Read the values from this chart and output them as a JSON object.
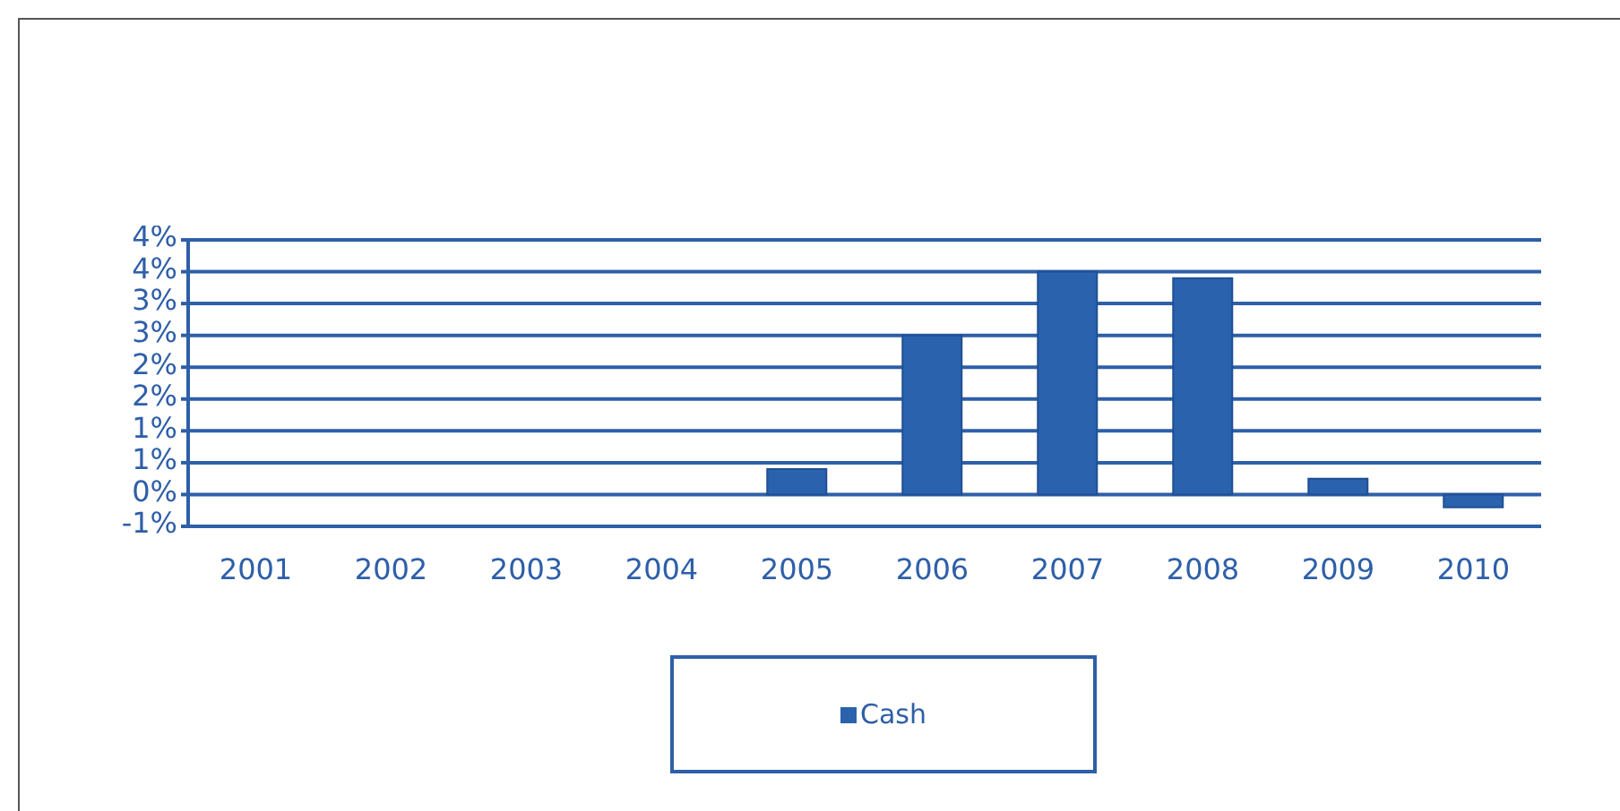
{
  "chart_data": {
    "type": "bar",
    "categories": [
      "2001",
      "2002",
      "2003",
      "2004",
      "2005",
      "2006",
      "2007",
      "2008",
      "2009",
      "2010"
    ],
    "series": [
      {
        "name": "Cash",
        "color": "#2a62ad",
        "values": [
          0,
          0,
          0,
          0,
          0.4,
          2.5,
          3.5,
          3.4,
          0.25,
          -0.2
        ]
      }
    ],
    "ylim": [
      -0.5,
      4
    ],
    "yticks": [
      {
        "value": -0.5,
        "label": "-1%"
      },
      {
        "value": 0,
        "label": "0%"
      },
      {
        "value": 0.5,
        "label": "1%"
      },
      {
        "value": 1,
        "label": "1%"
      },
      {
        "value": 1.5,
        "label": "2%"
      },
      {
        "value": 2,
        "label": "2%"
      },
      {
        "value": 2.5,
        "label": "3%"
      },
      {
        "value": 3,
        "label": "3%"
      },
      {
        "value": 3.5,
        "label": "4%"
      },
      {
        "value": 4,
        "label": "4%"
      }
    ],
    "grid": "y",
    "legend": "bottom"
  }
}
